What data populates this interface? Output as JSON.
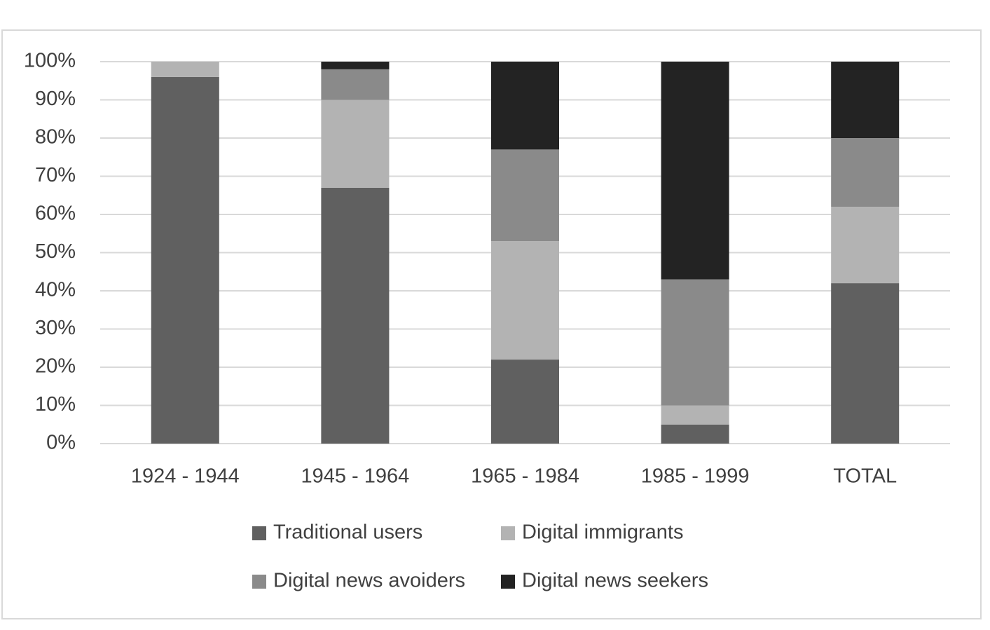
{
  "chart_data": {
    "type": "stacked_bar",
    "categories": [
      "1924 - 1944",
      "1945 - 1964",
      "1965 - 1984",
      "1985 - 1999",
      "TOTAL"
    ],
    "series": [
      {
        "name": "Traditional users",
        "color": "#606060",
        "values": [
          96,
          67,
          22,
          5,
          42
        ]
      },
      {
        "name": "Digital immigrants",
        "color": "#b3b3b3",
        "values": [
          4,
          23,
          31,
          5,
          20
        ]
      },
      {
        "name": "Digital news avoiders",
        "color": "#8a8a8a",
        "values": [
          0,
          8,
          24,
          33,
          18
        ]
      },
      {
        "name": "Digital news seekers",
        "color": "#232323",
        "values": [
          0,
          2,
          23,
          57,
          20
        ]
      }
    ],
    "ylim": [
      0,
      100
    ],
    "yticks": [
      {
        "value": 0,
        "label": "0%"
      },
      {
        "value": 10,
        "label": "10%"
      },
      {
        "value": 20,
        "label": "20%"
      },
      {
        "value": 30,
        "label": "30%"
      },
      {
        "value": 40,
        "label": "40%"
      },
      {
        "value": 50,
        "label": "50%"
      },
      {
        "value": 60,
        "label": "60%"
      },
      {
        "value": 70,
        "label": "70%"
      },
      {
        "value": 80,
        "label": "80%"
      },
      {
        "value": 90,
        "label": "90%"
      },
      {
        "value": 100,
        "label": "100%"
      }
    ],
    "grid": true,
    "legend": "bottom"
  }
}
